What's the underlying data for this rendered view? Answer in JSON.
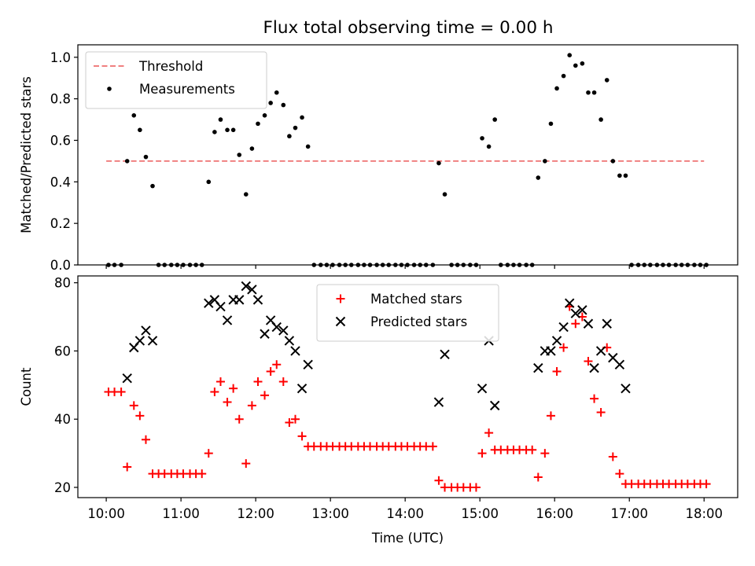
{
  "figure": {
    "title": "Flux total observing time = 0.00 h"
  },
  "chart_data": [
    {
      "type": "scatter",
      "title": "Flux total observing time = 0.00 h",
      "xlabel": "",
      "ylabel": "Matched/Predicted stars",
      "xlim": [
        9.62,
        18.45
      ],
      "ylim": [
        0.0,
        1.06
      ],
      "yticks": [
        0.0,
        0.2,
        0.4,
        0.6,
        0.8,
        1.0
      ],
      "ytick_labels": [
        "0.0",
        "0.2",
        "0.4",
        "0.6",
        "0.8",
        "1.0"
      ],
      "grid": false,
      "legend": {
        "position": "upper-left"
      },
      "threshold": {
        "name": "Threshold",
        "value": 0.5,
        "x_range": [
          10.0,
          18.0
        ],
        "color": "#f08080",
        "style": "dashed"
      },
      "series": [
        {
          "name": "Measurements",
          "color": "#000000",
          "marker": "dot",
          "x": [
            10.03,
            10.11,
            10.2,
            10.28,
            10.37,
            10.45,
            10.53,
            10.62,
            10.7,
            10.78,
            10.87,
            10.95,
            11.03,
            11.12,
            11.2,
            11.28,
            11.37,
            11.45,
            11.53,
            11.62,
            11.7,
            11.78,
            11.87,
            11.95,
            12.03,
            12.12,
            12.2,
            12.28,
            12.37,
            12.45,
            12.53,
            12.62,
            12.7,
            12.78,
            12.87,
            12.95,
            13.03,
            13.12,
            13.2,
            13.28,
            13.37,
            13.45,
            13.53,
            13.62,
            13.7,
            13.78,
            13.87,
            13.95,
            14.03,
            14.12,
            14.2,
            14.28,
            14.37,
            14.45,
            14.53,
            14.62,
            14.7,
            14.78,
            14.87,
            14.95,
            15.03,
            15.12,
            15.2,
            15.28,
            15.37,
            15.45,
            15.53,
            15.62,
            15.7,
            15.78,
            15.87,
            15.95,
            16.03,
            16.12,
            16.2,
            16.28,
            16.37,
            16.45,
            16.53,
            16.62,
            16.7,
            16.78,
            16.87,
            16.95,
            17.03,
            17.12,
            17.2,
            17.28,
            17.37,
            17.45,
            17.53,
            17.62,
            17.7,
            17.78,
            17.87,
            17.95,
            18.03
          ],
          "y": [
            0.0,
            0.0,
            0.0,
            0.5,
            0.72,
            0.65,
            0.52,
            0.38,
            0.0,
            0.0,
            0.0,
            0.0,
            0.0,
            0.0,
            0.0,
            0.0,
            0.4,
            0.64,
            0.7,
            0.65,
            0.65,
            0.53,
            0.34,
            0.56,
            0.68,
            0.72,
            0.78,
            0.83,
            0.77,
            0.62,
            0.66,
            0.71,
            0.57,
            0.0,
            0.0,
            0.0,
            0.0,
            0.0,
            0.0,
            0.0,
            0.0,
            0.0,
            0.0,
            0.0,
            0.0,
            0.0,
            0.0,
            0.0,
            0.0,
            0.0,
            0.0,
            0.0,
            0.0,
            0.49,
            0.34,
            0.0,
            0.0,
            0.0,
            0.0,
            0.0,
            0.61,
            0.57,
            0.7,
            0.0,
            0.0,
            0.0,
            0.0,
            0.0,
            0.0,
            0.42,
            0.5,
            0.68,
            0.85,
            0.91,
            1.01,
            0.96,
            0.97,
            0.83,
            0.83,
            0.7,
            0.89,
            0.5,
            0.43,
            0.43,
            0.0,
            0.0,
            0.0,
            0.0,
            0.0,
            0.0,
            0.0,
            0.0,
            0.0,
            0.0,
            0.0,
            0.0,
            0.0
          ]
        }
      ]
    },
    {
      "type": "scatter",
      "xlabel": "Time (UTC)",
      "ylabel": "Count",
      "xlim": [
        9.62,
        18.45
      ],
      "ylim": [
        17.0,
        82.0
      ],
      "yticks": [
        20,
        40,
        60,
        80
      ],
      "ytick_labels": [
        "20",
        "40",
        "60",
        "80"
      ],
      "xticks": [
        10,
        11,
        12,
        13,
        14,
        15,
        16,
        17,
        18
      ],
      "xtick_labels": [
        "10:00",
        "11:00",
        "12:00",
        "13:00",
        "14:00",
        "15:00",
        "16:00",
        "17:00",
        "18:00"
      ],
      "grid": false,
      "legend": {
        "position": "top-center"
      },
      "series": [
        {
          "name": "Matched stars",
          "color": "#ff0000",
          "marker": "plus",
          "x": [
            10.03,
            10.11,
            10.2,
            10.28,
            10.37,
            10.45,
            10.53,
            10.62,
            10.7,
            10.78,
            10.87,
            10.95,
            11.03,
            11.12,
            11.2,
            11.28,
            11.37,
            11.45,
            11.53,
            11.62,
            11.7,
            11.78,
            11.87,
            11.95,
            12.03,
            12.12,
            12.2,
            12.28,
            12.37,
            12.45,
            12.53,
            12.62,
            12.7,
            12.78,
            12.87,
            12.95,
            13.03,
            13.12,
            13.2,
            13.28,
            13.37,
            13.45,
            13.53,
            13.62,
            13.7,
            13.78,
            13.87,
            13.95,
            14.03,
            14.12,
            14.2,
            14.28,
            14.37,
            14.45,
            14.53,
            14.62,
            14.7,
            14.78,
            14.87,
            14.95,
            15.03,
            15.12,
            15.2,
            15.28,
            15.37,
            15.45,
            15.53,
            15.62,
            15.7,
            15.78,
            15.87,
            15.95,
            16.03,
            16.12,
            16.2,
            16.28,
            16.37,
            16.45,
            16.53,
            16.62,
            16.7,
            16.78,
            16.87,
            16.95,
            17.03,
            17.12,
            17.2,
            17.28,
            17.37,
            17.45,
            17.53,
            17.62,
            17.7,
            17.78,
            17.87,
            17.95,
            18.03
          ],
          "y": [
            48,
            48,
            48,
            26,
            44,
            41,
            34,
            24,
            24,
            24,
            24,
            24,
            24,
            24,
            24,
            24,
            30,
            48,
            51,
            45,
            49,
            40,
            27,
            44,
            51,
            47,
            54,
            56,
            51,
            39,
            40,
            35,
            32,
            32,
            32,
            32,
            32,
            32,
            32,
            32,
            32,
            32,
            32,
            32,
            32,
            32,
            32,
            32,
            32,
            32,
            32,
            32,
            32,
            22,
            20,
            20,
            20,
            20,
            20,
            20,
            30,
            36,
            31,
            31,
            31,
            31,
            31,
            31,
            31,
            23,
            30,
            41,
            54,
            61,
            73,
            68,
            70,
            57,
            46,
            42,
            61,
            29,
            24,
            21,
            21,
            21,
            21,
            21,
            21,
            21,
            21,
            21,
            21,
            21,
            21,
            21,
            21
          ]
        },
        {
          "name": "Predicted stars",
          "color": "#000000",
          "marker": "x",
          "x": [
            10.28,
            10.37,
            10.45,
            10.53,
            10.62,
            11.37,
            11.45,
            11.53,
            11.62,
            11.7,
            11.78,
            11.87,
            11.95,
            12.03,
            12.12,
            12.2,
            12.28,
            12.37,
            12.45,
            12.53,
            12.62,
            12.7,
            14.45,
            14.53,
            15.03,
            15.12,
            15.2,
            15.78,
            15.87,
            15.95,
            16.03,
            16.12,
            16.2,
            16.28,
            16.37,
            16.45,
            16.53,
            16.62,
            16.7,
            16.78,
            16.87,
            16.95
          ],
          "y": [
            52,
            61,
            63,
            66,
            63,
            74,
            75,
            73,
            69,
            75,
            75,
            79,
            78,
            75,
            65,
            69,
            67,
            66,
            63,
            60,
            49,
            56,
            45,
            59,
            49,
            63,
            44,
            55,
            60,
            60,
            63,
            67,
            74,
            71,
            72,
            68,
            55,
            60,
            68,
            58,
            56,
            49
          ]
        }
      ]
    }
  ]
}
